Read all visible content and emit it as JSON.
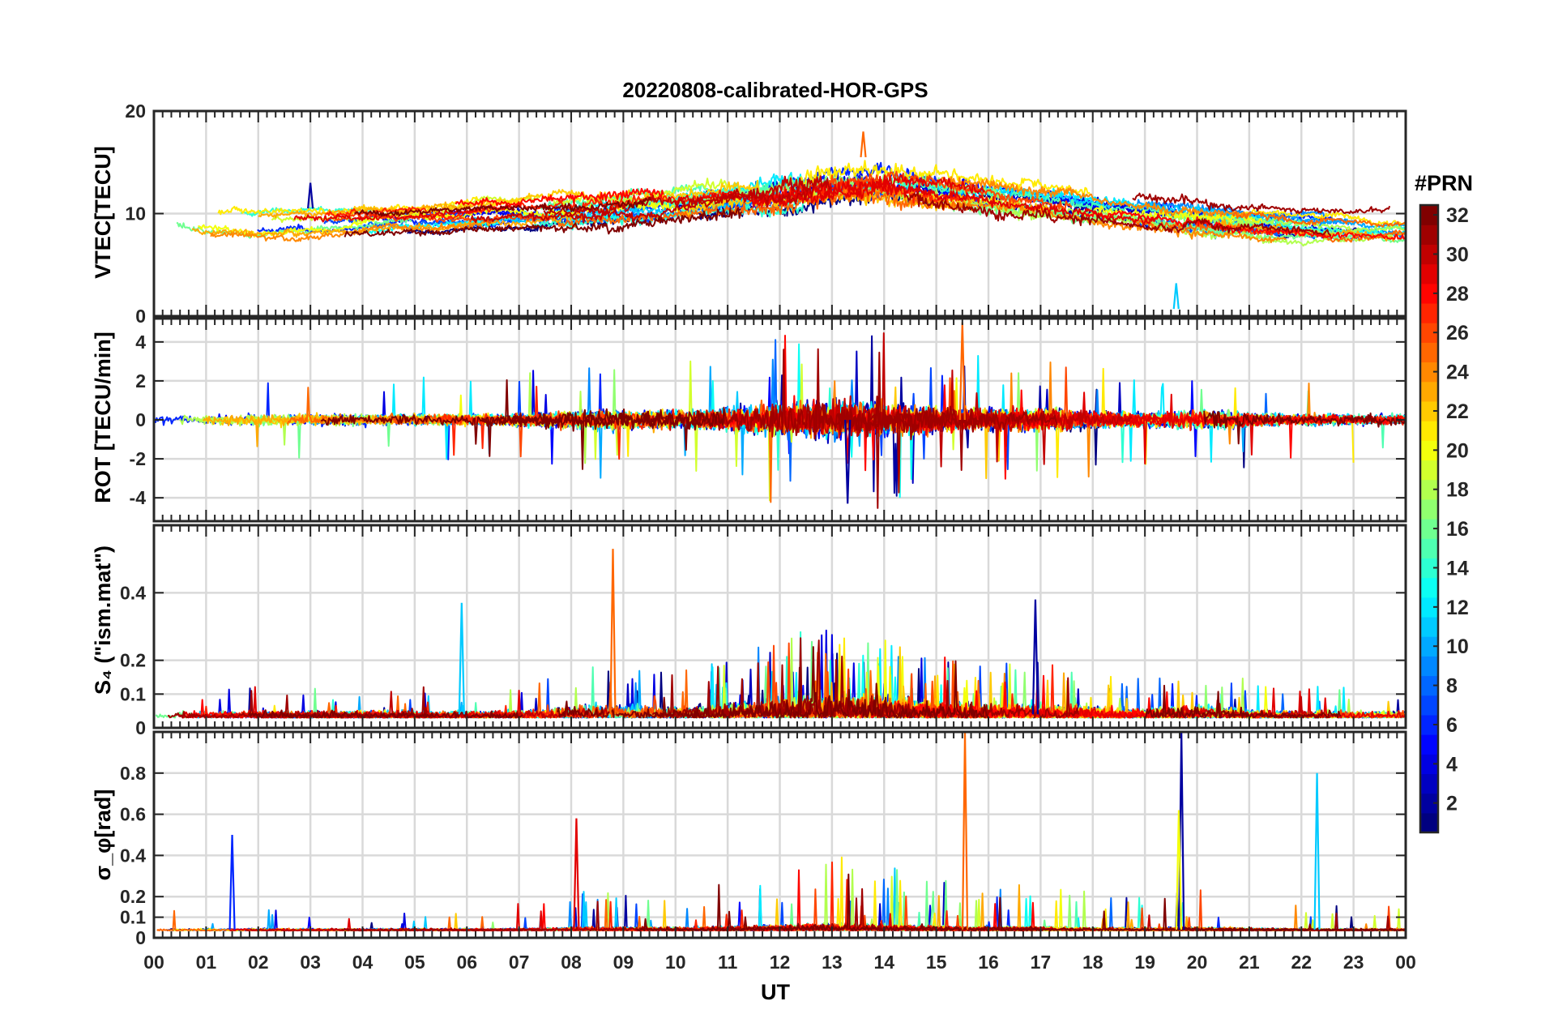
{
  "chart_data": {
    "title": "20220808-calibrated-HOR-GPS",
    "type": "line",
    "x": {
      "label": "UT",
      "range_hours": [
        0,
        24
      ],
      "tick_labels": [
        "00",
        "01",
        "02",
        "03",
        "04",
        "05",
        "06",
        "07",
        "08",
        "09",
        "10",
        "11",
        "12",
        "13",
        "14",
        "15",
        "16",
        "17",
        "18",
        "19",
        "20",
        "21",
        "22",
        "23",
        "00"
      ]
    },
    "colorbar": {
      "label": "#PRN",
      "range": [
        1,
        32
      ],
      "tick_labels": [
        "2",
        "4",
        "6",
        "8",
        "10",
        "12",
        "14",
        "16",
        "18",
        "20",
        "22",
        "24",
        "26",
        "28",
        "30",
        "32"
      ],
      "colormap": "jet"
    },
    "panels": [
      {
        "name": "vtec",
        "ylabel": "VTEC[TECU]",
        "ylim": [
          0,
          20
        ],
        "yticks": [
          0,
          10,
          20
        ],
        "ytick_labels": [
          "0",
          "10",
          "20"
        ],
        "grid": true,
        "baseline_profile": [
          [
            0,
            9.5
          ],
          [
            2,
            8.8
          ],
          [
            4,
            9.3
          ],
          [
            6,
            9.8
          ],
          [
            8,
            10.2
          ],
          [
            10,
            11.0
          ],
          [
            11,
            11.5
          ],
          [
            12,
            12.0
          ],
          [
            13,
            12.8
          ],
          [
            14,
            13.0
          ],
          [
            15,
            12.5
          ],
          [
            16,
            11.8
          ],
          [
            17,
            11.3
          ],
          [
            18,
            10.8
          ],
          [
            19,
            10.2
          ],
          [
            20,
            9.8
          ],
          [
            21,
            9.4
          ],
          [
            22,
            9.0
          ],
          [
            23,
            8.8
          ],
          [
            24,
            8.6
          ]
        ],
        "notable_values": [
          {
            "label": "peak",
            "x_hours": 13.6,
            "y": 18.0
          },
          {
            "label": "PRN ~5 excursion",
            "x_hours": 3.0,
            "y": 13.0
          },
          {
            "label": "minimum",
            "x_hours": 19.6,
            "y": 3.2
          }
        ]
      },
      {
        "name": "rot",
        "ylabel": "ROT [TECU/min]",
        "ylim": [
          -5.2,
          5.2
        ],
        "yticks": [
          -4,
          -2,
          0,
          2,
          4
        ],
        "ytick_labels": [
          "-4",
          "-2",
          "0",
          "2",
          "4"
        ],
        "grid": true,
        "notable_values": [
          {
            "label": "max",
            "x_hours": 15.5,
            "y": 5.0
          },
          {
            "label": "min",
            "x_hours": 13.3,
            "y": -4.3
          }
        ]
      },
      {
        "name": "s4",
        "ylabel": "S₄ (\"ism.mat\")",
        "ylim": [
          0,
          0.6
        ],
        "yticks": [
          0,
          0.1,
          0.2,
          0.4
        ],
        "ytick_labels": [
          "0",
          "0.1",
          "0.2",
          "0.4"
        ],
        "grid": true,
        "notable_values": [
          {
            "label": "max",
            "x_hours": 8.8,
            "y": 0.53
          },
          {
            "label": "",
            "x_hours": 16.9,
            "y": 0.38
          },
          {
            "label": "",
            "x_hours": 5.9,
            "y": 0.37
          }
        ]
      },
      {
        "name": "sigma_phi",
        "ylabel": "σ_φ[rad]",
        "ylim": [
          0,
          1.0
        ],
        "yticks": [
          0,
          0.1,
          0.2,
          0.4,
          0.6,
          0.8
        ],
        "ytick_labels": [
          "0",
          "0.1",
          "0.2",
          "0.4",
          "0.6",
          "0.8"
        ],
        "grid": true,
        "notable_values": [
          {
            "label": "max",
            "x_hours": 15.55,
            "y": 1.0
          },
          {
            "label": "",
            "x_hours": 19.7,
            "y": 1.0
          },
          {
            "label": "",
            "x_hours": 22.3,
            "y": 0.8
          },
          {
            "label": "",
            "x_hours": 19.65,
            "y": 0.62
          },
          {
            "label": "",
            "x_hours": 8.1,
            "y": 0.58
          },
          {
            "label": "",
            "x_hours": 1.5,
            "y": 0.5
          }
        ]
      }
    ]
  }
}
